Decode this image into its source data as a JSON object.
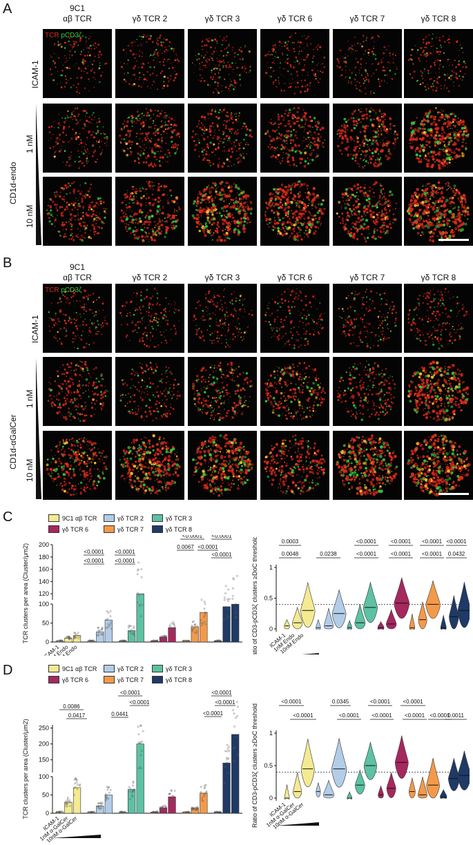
{
  "panels": {
    "A": {
      "letter": "A",
      "column_headers": [
        {
          "line1": "9C1",
          "line2": "αβ TCR"
        },
        {
          "line1": "",
          "line2": "γδ TCR 2"
        },
        {
          "line1": "",
          "line2": "γδ TCR 3"
        },
        {
          "line1": "",
          "line2": "γδ TCR 6"
        },
        {
          "line1": "",
          "line2": "γδ TCR 7"
        },
        {
          "line1": "",
          "line2": "γδ TCR 8"
        }
      ],
      "channel_label_tcr": "TCR",
      "channel_label_pcd3": "pCD3ζ",
      "row_label_top": "ICAM-1",
      "row_label_ligand": "CD1d-endo",
      "row_label_1nm": "1 nM",
      "row_label_10nm": "10 nM"
    },
    "B": {
      "letter": "B",
      "column_headers": [
        {
          "line1": "9C1",
          "line2": "αβ TCR"
        },
        {
          "line1": "",
          "line2": "γδ TCR 2"
        },
        {
          "line1": "",
          "line2": "γδ TCR 3"
        },
        {
          "line1": "",
          "line2": "γδ TCR 6"
        },
        {
          "line1": "",
          "line2": "γδ TCR 7"
        },
        {
          "line1": "",
          "line2": "γδ TCR 8"
        }
      ],
      "channel_label_tcr": "TCR",
      "channel_label_pcd3": "pCD3ζ",
      "row_label_top": "ICAM-1",
      "row_label_ligand": "CD1d-αGalCer",
      "row_label_1nm": "1 nM",
      "row_label_10nm": "10 nM"
    },
    "C": {
      "letter": "C"
    },
    "D": {
      "letter": "D"
    }
  },
  "legend_entries": [
    "9C1 αβ TCR",
    "γδ TCR 2",
    "γδ TCR 3",
    "γδ TCR 6",
    "γδ TCR 7",
    "γδ TCR 8"
  ],
  "colors": {
    "9C1": "#f4ea92",
    "TCR2": "#b3cde8",
    "TCR3": "#5dc1a3",
    "TCR6": "#a5285e",
    "TCR7": "#f39a4a",
    "TCR8": "#1f3a66",
    "image_bg": "#040404",
    "tcr_red": "#e0281a",
    "pcd3_green": "#2ecc40"
  },
  "chart_data": [
    {
      "id": "C-left",
      "type": "bar",
      "ylabel": "TCR clusters per area (Cluster/μm2)",
      "y_ticks_lower": [
        0,
        50,
        100
      ],
      "y_ticks_upper": [
        120,
        140,
        160,
        180,
        200
      ],
      "x_tick_labels": [
        "ICAM-1",
        "1nM Endo",
        "10nM Endo"
      ],
      "series": [
        {
          "name": "9C1 αβ TCR",
          "values": [
            3,
            10,
            17
          ]
        },
        {
          "name": "γδ TCR 2",
          "values": [
            3,
            27,
            58
          ]
        },
        {
          "name": "γδ TCR 3",
          "values": [
            3,
            30,
            120
          ]
        },
        {
          "name": "γδ TCR 6",
          "values": [
            3,
            13,
            38
          ]
        },
        {
          "name": "γδ TCR 7",
          "values": [
            3,
            40,
            78
          ]
        },
        {
          "name": "γδ TCR 8",
          "values": [
            3,
            93,
            103
          ]
        }
      ],
      "pvalues": [
        [
          "<0.0001",
          "<0.0001"
        ],
        [
          "<0.0001",
          "<0.0001"
        ],
        [
          "<0.0001",
          "0.0067",
          "<0.0001"
        ],
        [
          "<0.0001",
          "<0.0001"
        ]
      ]
    },
    {
      "id": "C-right",
      "type": "violin",
      "ylabel": "Ratio of CD3-pCD3ζ clusters ≥DoC threshold",
      "y_ticks": [
        0.0,
        0.5,
        1.0
      ],
      "threshold": 0.4,
      "x_tick_labels": [
        "ICAM-1",
        "1nM Endo",
        "10nM Endo"
      ],
      "series": [
        {
          "name": "9C1 αβ TCR",
          "medians": [
            0.05,
            0.1,
            0.3
          ]
        },
        {
          "name": "γδ TCR 2",
          "medians": [
            0.02,
            0.05,
            0.25
          ]
        },
        {
          "name": "γδ TCR 3",
          "medians": [
            0.02,
            0.1,
            0.35
          ]
        },
        {
          "name": "γδ TCR 6",
          "medians": [
            0.02,
            0.08,
            0.42
          ]
        },
        {
          "name": "γδ TCR 7",
          "medians": [
            0.02,
            0.15,
            0.4
          ]
        },
        {
          "name": "γδ TCR 8",
          "medians": [
            0.02,
            0.2,
            0.3
          ]
        }
      ],
      "pvalues_top": [
        "0.0003",
        "<0.0001",
        "<0.0001",
        "<0.0001",
        "<0.0001"
      ],
      "pvalues_bottom": [
        "0.0048",
        "0.0238",
        "<0.0001",
        "<0.0001",
        "<0.0001",
        "0.0432"
      ]
    },
    {
      "id": "D-left",
      "type": "bar",
      "ylabel": "TCR clusters per area (Cluster/μm2)",
      "y_ticks_lower": [
        0,
        50,
        100
      ],
      "y_ticks_upper": [
        150,
        200,
        250
      ],
      "x_tick_labels": [
        "ICAM-1",
        "1nM α-GalCer",
        "10nM α-GalCer"
      ],
      "series": [
        {
          "name": "9C1 αβ TCR",
          "values": [
            3,
            30,
            70
          ]
        },
        {
          "name": "γδ TCR 2",
          "values": [
            3,
            20,
            50
          ]
        },
        {
          "name": "γδ TCR 3",
          "values": [
            3,
            65,
            200
          ]
        },
        {
          "name": "γδ TCR 6",
          "values": [
            3,
            15,
            45
          ]
        },
        {
          "name": "γδ TCR 7",
          "values": [
            3,
            15,
            55
          ]
        },
        {
          "name": "γδ TCR 8",
          "values": [
            3,
            140,
            230
          ]
        }
      ],
      "pvalues": [
        [
          "0.0086",
          "0.0417"
        ],
        [
          "<0.0001",
          "0.0441",
          "<0.0001"
        ],
        [
          "<0.0001",
          "<0.0001",
          "<0.0001"
        ]
      ]
    },
    {
      "id": "D-right",
      "type": "violin",
      "ylabel": "Ratio of CD3-pCD3ζ clusters ≥DoC threshold",
      "y_ticks": [
        0.0,
        0.5,
        1.0
      ],
      "threshold": 0.4,
      "x_tick_labels": [
        "ICAM-1",
        "1nM α-GalCer",
        "10nM α-GalCer"
      ],
      "series": [
        {
          "name": "9C1 αβ TCR",
          "medians": [
            0.0,
            0.1,
            0.45
          ]
        },
        {
          "name": "γδ TCR 2",
          "medians": [
            0.1,
            0.05,
            0.45
          ]
        },
        {
          "name": "γδ TCR 3",
          "medians": [
            0.0,
            0.2,
            0.5
          ]
        },
        {
          "name": "γδ TCR 6",
          "medians": [
            0.05,
            0.15,
            0.55
          ]
        },
        {
          "name": "γδ TCR 7",
          "medians": [
            0.1,
            0.05,
            0.2
          ]
        },
        {
          "name": "γδ TCR 8",
          "medians": [
            0.02,
            0.3,
            0.35
          ]
        }
      ],
      "pvalues_top": [
        "<0.0001",
        "0.0345",
        "<0.0001",
        "<0.0001"
      ],
      "pvalues_bottom": [
        "<0.0001",
        "<0.0001",
        "<0.0001",
        "<0.0001",
        "<0.0001",
        "0.0011"
      ]
    }
  ]
}
